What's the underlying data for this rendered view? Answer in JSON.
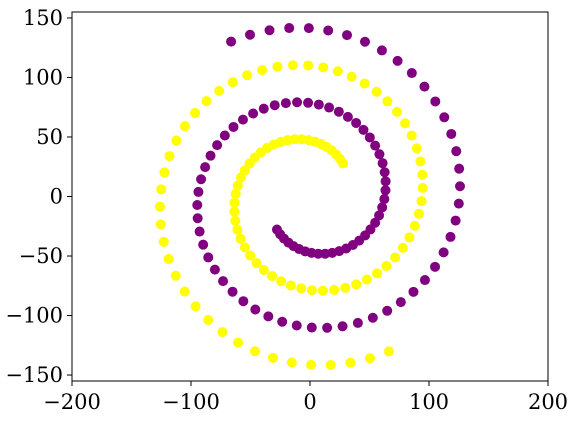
{
  "chart_data": {
    "type": "scatter",
    "title": "",
    "xlabel": "",
    "ylabel": "",
    "xlim": [
      -200,
      200
    ],
    "ylim": [
      -155,
      155
    ],
    "xticks": [
      -200,
      -100,
      0,
      100,
      200
    ],
    "yticks": [
      -150,
      -100,
      -50,
      0,
      50,
      100,
      150
    ],
    "xtick_labels": [
      "−200",
      "−100",
      "0",
      "100",
      "200"
    ],
    "ytick_labels": [
      "−150",
      "−100",
      "−50",
      "0",
      "50",
      "100",
      "150"
    ],
    "grid": false,
    "legend": "none",
    "series": [
      {
        "color": "#800080",
        "spiral": {
          "t_start": 1.25,
          "t_end": 4.65,
          "count": 93,
          "angle_offset_deg": 0
        }
      },
      {
        "color": "#ffff00",
        "spiral": {
          "t_start": 1.25,
          "t_end": 4.65,
          "count": 93,
          "angle_offset_deg": 180
        }
      }
    ]
  }
}
